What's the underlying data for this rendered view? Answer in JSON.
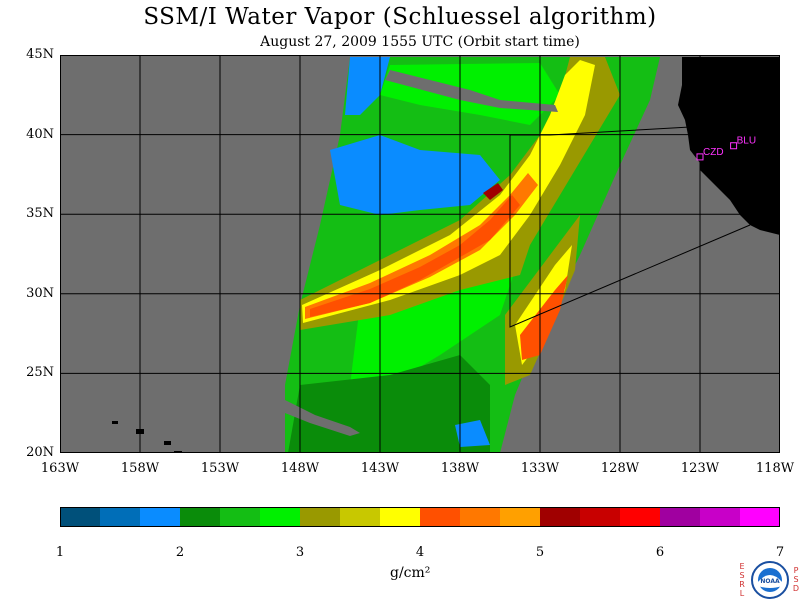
{
  "title": "SSM/I Water Vapor (Schluessel algorithm)",
  "subtitle": "August 27, 2009  1555 UTC  (Orbit start time)",
  "map": {
    "lon_range": [
      -163,
      -118
    ],
    "lat_range": [
      20,
      45
    ],
    "lat_labels": [
      "45N",
      "40N",
      "35N",
      "30N",
      "25N",
      "20N"
    ],
    "lon_labels": [
      "163W",
      "158W",
      "153W",
      "148W",
      "143W",
      "138W",
      "133W",
      "128W",
      "123W",
      "118W"
    ],
    "stations": [
      {
        "id": "CZD",
        "lon": -123.0,
        "lat": 38.6
      },
      {
        "id": "BLU",
        "lon": -120.9,
        "lat": 39.3
      }
    ],
    "colors": {
      "land": "#000000",
      "no_data": "#6e6e6e",
      "station": "#ff33ff"
    }
  },
  "colorbar": {
    "ticks": [
      "1",
      "2",
      "3",
      "4",
      "5",
      "6",
      "7"
    ],
    "colors": [
      "#00507a",
      "#006eb8",
      "#0a8cff",
      "#0a8c0a",
      "#14be14",
      "#00f000",
      "#999900",
      "#c8c800",
      "#ffff00",
      "#ff5000",
      "#ff7800",
      "#ffa000",
      "#a00000",
      "#c80000",
      "#ff0000",
      "#a000a0",
      "#c800c8",
      "#ff00ff"
    ],
    "units": "g/cm²"
  },
  "logo": {
    "left_text": "ESRL",
    "right_text": "PSD",
    "name": "NOAA"
  }
}
